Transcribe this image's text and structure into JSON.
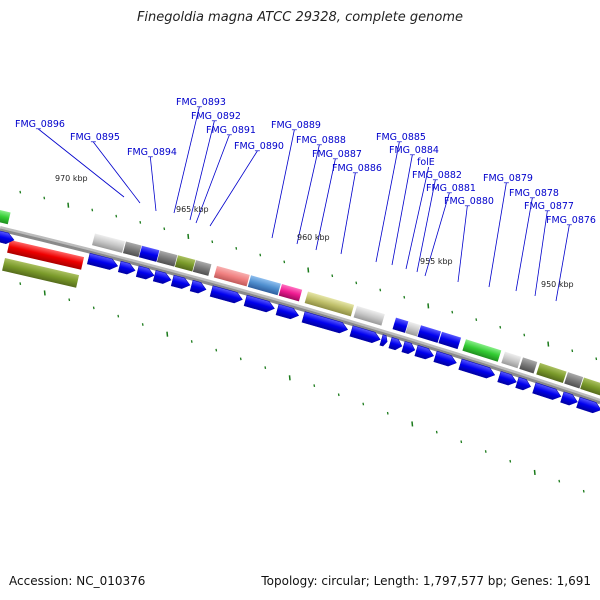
{
  "title": "Finegoldia magna ATCC 29328, complete genome",
  "footer": {
    "accession": "Accession: NC_010376",
    "summary": "Topology: circular; Length: 1,797,577 bp; Genes: 1,691"
  },
  "ruler_labels": [
    "970 kbp",
    "965 kbp",
    "960 kbp",
    "955 kbp",
    "950 kbp"
  ],
  "gene_labels": [
    "FMG_0896",
    "FMG_0895",
    "FMG_0894",
    "FMG_0893",
    "FMG_0892",
    "FMG_0891",
    "FMG_0890",
    "FMG_0889",
    "FMG_0888",
    "FMG_0887",
    "FMG_0886",
    "FMG_0885",
    "FMG_0884",
    "folE",
    "FMG_0882",
    "FMG_0881",
    "FMG_0880",
    "FMG_0879",
    "FMG_0878",
    "FMG_0877",
    "FMG_0876"
  ],
  "colors": {
    "label_text": "#0000cc",
    "label_line": "#0000cc",
    "cds_arrow": "#0000ee",
    "backbone": "#8a8a8a",
    "tick": "#1a7a1a",
    "red_block": "#ee0000",
    "green_block": "#33cc33",
    "olive_block": "#7a9a2a",
    "khaki_block": "#bfbf6a",
    "salmon_block": "#f08080",
    "steelblue_block": "#4f8fcf",
    "magenta_block": "#ee1a90",
    "grey_block": "#7a7a7a",
    "lightgrey_block": "#c8c8c8"
  }
}
